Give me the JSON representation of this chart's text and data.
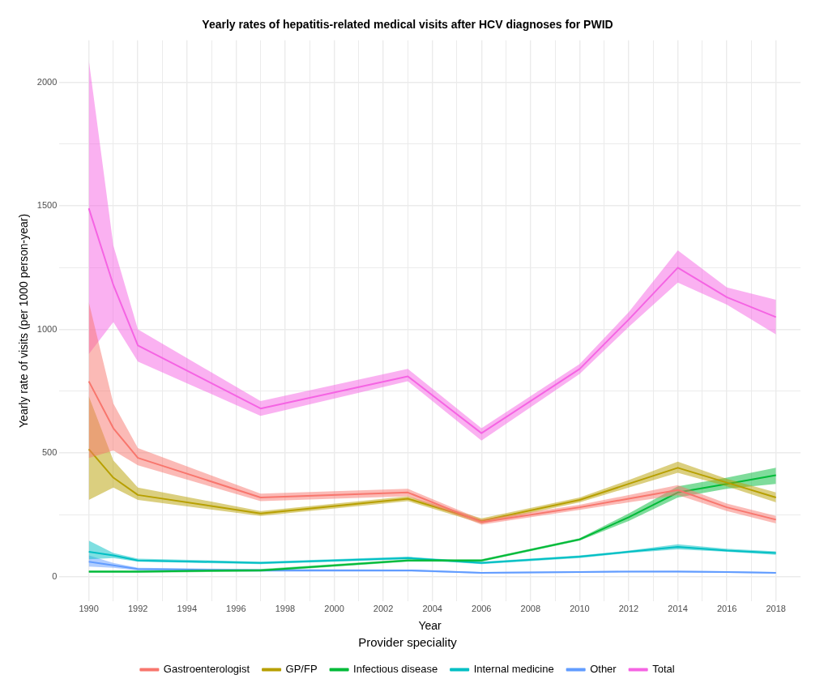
{
  "chart_data": {
    "type": "line",
    "title": "Yearly rates of hepatitis-related medical visits after HCV diagnoses for PWID",
    "xlabel": "Year",
    "ylabel": "Yearly rate of visits (per 1000 person-year)",
    "legend_title": "Provider speciality",
    "legend": "bottom",
    "grid": true,
    "marker": "none",
    "line_style": "solid",
    "x": [
      1990,
      1991,
      1992,
      1997,
      2003,
      2006,
      2010,
      2012,
      2014,
      2016,
      2018
    ],
    "xlim": [
      1988.8,
      2019
    ],
    "ylim": [
      -100,
      2170
    ],
    "xticks": [
      1990,
      {
        "value": 1991,
        "label": null
      },
      1992,
      {
        "value": 1993,
        "label": null
      },
      1994,
      {
        "value": 1995,
        "label": null
      },
      1996,
      {
        "value": 1997,
        "label": null
      },
      1998,
      {
        "value": 1999,
        "label": null
      },
      2000,
      {
        "value": 2001,
        "label": null
      },
      2002,
      {
        "value": 2003,
        "label": null
      },
      2004,
      {
        "value": 2005,
        "label": null
      },
      2006,
      {
        "value": 2007,
        "label": null
      },
      2008,
      {
        "value": 2009,
        "label": null
      },
      2010,
      {
        "value": 2011,
        "label": null
      },
      2012,
      {
        "value": 2013,
        "label": null
      },
      2014,
      {
        "value": 2015,
        "label": null
      },
      2016,
      {
        "value": 2017,
        "label": null
      },
      2018
    ],
    "yticks": [
      0,
      {
        "value": 250,
        "label": null
      },
      500,
      {
        "value": 750,
        "label": null
      },
      1000,
      {
        "value": 1250,
        "label": null
      },
      1500,
      {
        "value": 1750,
        "label": null
      },
      2000
    ],
    "series": [
      {
        "name": "Gastroenterologist",
        "color": "#f8766d",
        "values": [
          790,
          600,
          480,
          320,
          340,
          220,
          280,
          315,
          350,
          280,
          230
        ],
        "lower": [
          480,
          510,
          450,
          305,
          325,
          210,
          270,
          300,
          330,
          265,
          215
        ],
        "upper": [
          1110,
          700,
          520,
          335,
          355,
          230,
          290,
          330,
          370,
          295,
          245
        ]
      },
      {
        "name": "GP/FP",
        "color": "#b79f00",
        "values": [
          515,
          400,
          330,
          255,
          315,
          225,
          310,
          375,
          440,
          380,
          320
        ],
        "lower": [
          310,
          360,
          310,
          245,
          305,
          215,
          300,
          360,
          420,
          365,
          300
        ],
        "upper": [
          730,
          470,
          360,
          265,
          325,
          235,
          320,
          390,
          465,
          395,
          340
        ]
      },
      {
        "name": "Infectious disease",
        "color": "#00ba38",
        "values": [
          20,
          20,
          20,
          25,
          65,
          65,
          150,
          240,
          340,
          375,
          410
        ],
        "lower": [
          15,
          15,
          15,
          20,
          60,
          60,
          145,
          225,
          320,
          355,
          375
        ],
        "upper": [
          25,
          25,
          25,
          30,
          70,
          70,
          155,
          255,
          365,
          400,
          440
        ]
      },
      {
        "name": "Internal medicine",
        "color": "#00bfc4",
        "values": [
          100,
          85,
          65,
          55,
          75,
          55,
          80,
          100,
          120,
          105,
          95
        ],
        "lower": [
          70,
          75,
          60,
          50,
          70,
          50,
          75,
          95,
          110,
          100,
          88
        ],
        "upper": [
          145,
          95,
          72,
          60,
          80,
          60,
          85,
          105,
          130,
          112,
          102
        ]
      },
      {
        "name": "Other",
        "color": "#619cff",
        "values": [
          60,
          45,
          30,
          25,
          25,
          15,
          18,
          20,
          20,
          18,
          15
        ],
        "lower": [
          40,
          35,
          25,
          20,
          20,
          12,
          15,
          17,
          17,
          15,
          12
        ],
        "upper": [
          85,
          55,
          35,
          30,
          28,
          18,
          21,
          23,
          24,
          21,
          18
        ]
      },
      {
        "name": "Total",
        "color": "#f564e3",
        "values": [
          1490,
          1180,
          935,
          680,
          810,
          580,
          840,
          1040,
          1250,
          1130,
          1050
        ],
        "lower": [
          900,
          1030,
          870,
          650,
          790,
          550,
          820,
          1010,
          1190,
          1100,
          980
        ],
        "upper": [
          2090,
          1340,
          1000,
          710,
          840,
          600,
          860,
          1070,
          1320,
          1170,
          1120
        ]
      }
    ]
  }
}
